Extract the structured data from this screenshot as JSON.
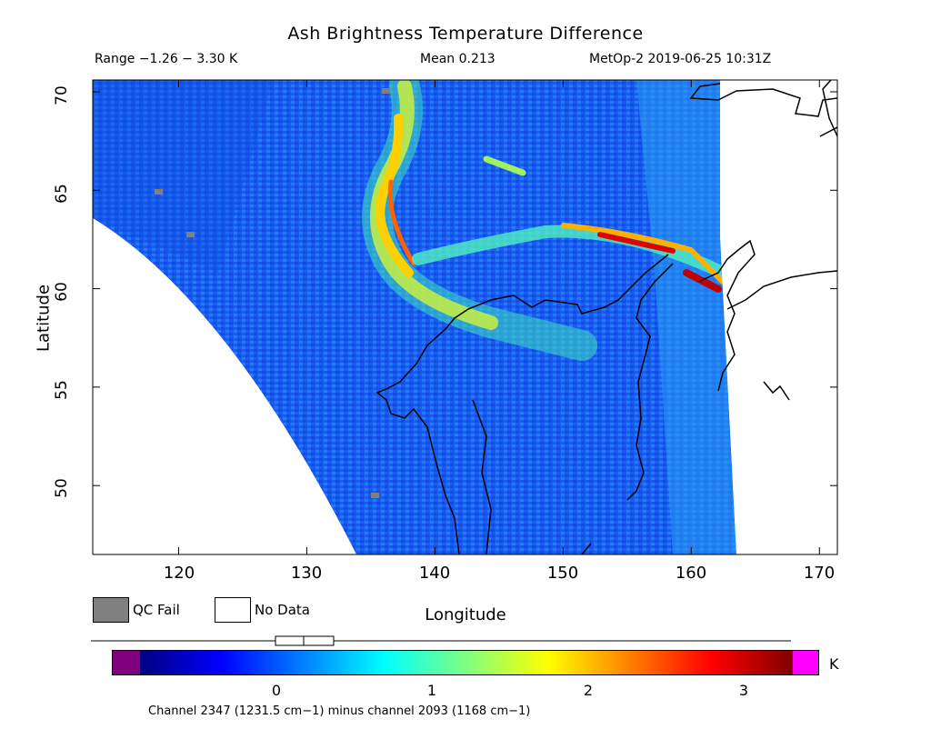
{
  "header": {
    "title": "Ash Brightness Temperature Difference",
    "range": "Range −1.26 − 3.30 K",
    "mean": "Mean 0.213",
    "satellite_time": "MetOp-2 2019-06-25 10:31Z"
  },
  "map": {
    "lon_range": [
      113.3,
      171.4
    ],
    "lat_range": [
      46.5,
      70.6
    ],
    "xlabel": "Longitude",
    "ylabel": "Latitude",
    "lon_ticks": [
      "120",
      "130",
      "140",
      "150",
      "160",
      "170"
    ],
    "lat_ticks": [
      "50",
      "55",
      "60",
      "65",
      "70"
    ],
    "field_min_K": -1.26,
    "field_max_K": 3.3,
    "field_mean_K": 0.213,
    "background_K": 0.2,
    "ash_plume_peak_K": 3.3
  },
  "legend": {
    "qc_fail": "QC Fail",
    "no_data": "No Data",
    "qc_fail_color": "#808080",
    "no_data_color": "#ffffff"
  },
  "colorbar": {
    "ticks": [
      "0",
      "1",
      "2",
      "3"
    ],
    "unit": "K",
    "under_color": "#800080",
    "over_color": "#ff00ff",
    "colors": [
      "#000080",
      "#0000ff",
      "#0080ff",
      "#00ffff",
      "#80ff80",
      "#ffff00",
      "#ff8000",
      "#ff0000",
      "#800000"
    ]
  },
  "footer": {
    "channel_note": "Channel 2347 (1231.5 cm−1) minus channel 2093 (1168 cm−1)"
  }
}
